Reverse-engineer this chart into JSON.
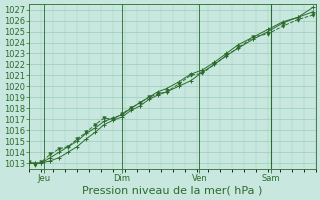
{
  "xlabel": "Pression niveau de la mer( hPa )",
  "bg_color": "#c8e8df",
  "plot_bg_color": "#c8e8df",
  "grid_color": "#99ccbb",
  "line_color": "#2d6a2d",
  "ylim": [
    1012.5,
    1027.5
  ],
  "yticks": [
    1013,
    1014,
    1015,
    1016,
    1017,
    1018,
    1019,
    1020,
    1021,
    1022,
    1023,
    1024,
    1025,
    1026,
    1027
  ],
  "xtick_labels": [
    "Jeu",
    "Dim",
    "Ven",
    "Sam"
  ],
  "xtick_positions": [
    10,
    62,
    114,
    162
  ],
  "xlim": [
    0,
    192
  ],
  "line1_x": [
    0,
    4,
    8,
    14,
    20,
    26,
    32,
    38,
    44,
    50,
    56,
    62,
    68,
    74,
    80,
    86,
    92,
    100,
    108,
    116,
    124,
    132,
    140,
    150,
    160,
    170,
    180,
    190
  ],
  "line1_y": [
    1013.0,
    1013.0,
    1013.0,
    1013.2,
    1013.5,
    1014.0,
    1014.5,
    1015.2,
    1015.8,
    1016.5,
    1016.9,
    1017.2,
    1017.8,
    1018.2,
    1018.8,
    1019.2,
    1019.5,
    1020.0,
    1020.5,
    1021.3,
    1022.0,
    1022.8,
    1023.5,
    1024.3,
    1025.0,
    1025.8,
    1026.3,
    1027.2
  ],
  "line2_x": [
    0,
    4,
    8,
    14,
    20,
    26,
    32,
    38,
    44,
    50,
    56,
    62,
    68,
    74,
    80,
    86,
    92,
    100,
    108,
    116,
    124,
    132,
    140,
    150,
    160,
    170,
    180,
    190
  ],
  "line2_y": [
    1013.1,
    1012.8,
    1013.1,
    1013.8,
    1014.3,
    1014.5,
    1015.2,
    1015.8,
    1016.5,
    1017.1,
    1017.0,
    1017.5,
    1018.0,
    1018.5,
    1019.0,
    1019.3,
    1019.5,
    1020.2,
    1021.0,
    1021.2,
    1022.0,
    1022.8,
    1023.5,
    1024.5,
    1024.8,
    1025.5,
    1026.1,
    1026.5
  ],
  "line3_x": [
    0,
    4,
    8,
    14,
    20,
    26,
    32,
    38,
    44,
    50,
    56,
    62,
    68,
    74,
    80,
    86,
    92,
    100,
    108,
    116,
    124,
    132,
    140,
    150,
    160,
    170,
    180,
    190
  ],
  "line3_y": [
    1013.0,
    1013.0,
    1013.0,
    1013.5,
    1014.0,
    1014.5,
    1015.0,
    1015.7,
    1016.2,
    1016.8,
    1017.1,
    1017.4,
    1018.0,
    1018.5,
    1019.0,
    1019.5,
    1019.8,
    1020.4,
    1021.1,
    1021.5,
    1022.2,
    1023.0,
    1023.8,
    1024.5,
    1025.2,
    1025.9,
    1026.3,
    1026.8
  ],
  "font_size_label": 8,
  "font_size_tick": 6,
  "tick_color": "#2d6a2d",
  "axis_color": "#2d6a2d",
  "figsize": [
    3.2,
    2.0
  ],
  "dpi": 100
}
